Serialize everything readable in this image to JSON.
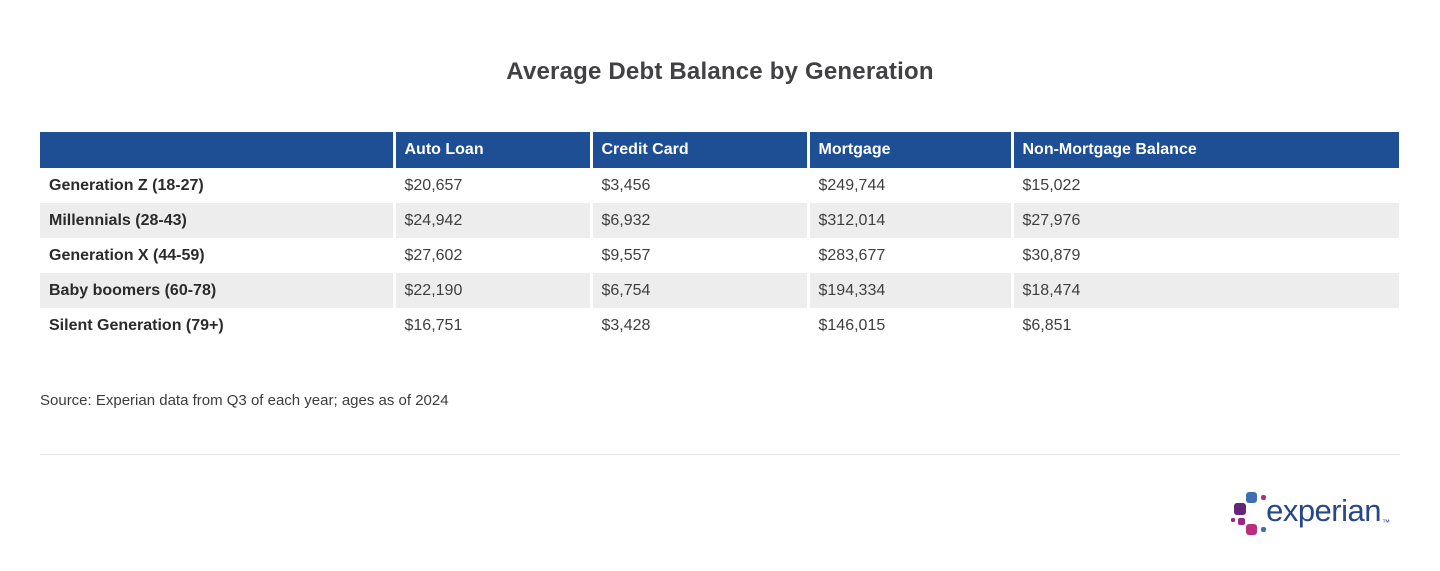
{
  "page": {
    "title": "Average Debt Balance by Generation"
  },
  "table": {
    "columns": [
      "",
      "Auto Loan",
      "Credit Card",
      "Mortgage",
      "Non-Mortgage Balance"
    ],
    "rows": [
      {
        "label": "Generation Z (18-27)",
        "values": [
          "$20,657",
          "$3,456",
          "$249,744",
          "$15,022"
        ]
      },
      {
        "label": "Millennials (28-43)",
        "values": [
          "$24,942",
          "$6,932",
          "$312,014",
          "$27,976"
        ]
      },
      {
        "label": "Generation X (44-59)",
        "values": [
          "$27,602",
          "$9,557",
          "$283,677",
          "$30,879"
        ]
      },
      {
        "label": "Baby boomers (60-78)",
        "values": [
          "$22,190",
          "$6,754",
          "$194,334",
          "$18,474"
        ]
      },
      {
        "label": "Silent Generation (79+)",
        "values": [
          "$16,751",
          "$3,428",
          "$146,015",
          "$6,851"
        ]
      }
    ]
  },
  "source": {
    "text": "Source: Experian data from Q3 of each year; ages as of 2024"
  },
  "logo": {
    "wordmark": "experian",
    "trademark": "™"
  },
  "colors": {
    "header_bg": "#1e4e94",
    "header_text": "#ffffff",
    "row_alt_bg": "#ededed",
    "title_text": "#414042",
    "body_text": "#3f3f3f",
    "logo_navy": "#26478a",
    "logo_light_blue": "#406eb3",
    "logo_purple": "#632678",
    "logo_magenta": "#982881",
    "logo_pink": "#ba2f7d"
  },
  "chart_data": {
    "type": "table",
    "title": "Average Debt Balance by Generation",
    "categories": [
      "Generation Z (18-27)",
      "Millennials (28-43)",
      "Generation X (44-59)",
      "Baby boomers (60-78)",
      "Silent Generation (79+)"
    ],
    "series": [
      {
        "name": "Auto Loan",
        "values": [
          20657,
          24942,
          27602,
          22190,
          16751
        ]
      },
      {
        "name": "Credit Card",
        "values": [
          3456,
          6932,
          9557,
          6754,
          3428
        ]
      },
      {
        "name": "Mortgage",
        "values": [
          249744,
          312014,
          283677,
          194334,
          146015
        ]
      },
      {
        "name": "Non-Mortgage Balance",
        "values": [
          15022,
          27976,
          30879,
          18474,
          6851
        ]
      }
    ],
    "source": "Source: Experian data from Q3 of each year; ages as of 2024",
    "layout": {
      "grid": false,
      "legend_position": "none",
      "header_style": "blue-band",
      "alternating_rows": true
    }
  }
}
